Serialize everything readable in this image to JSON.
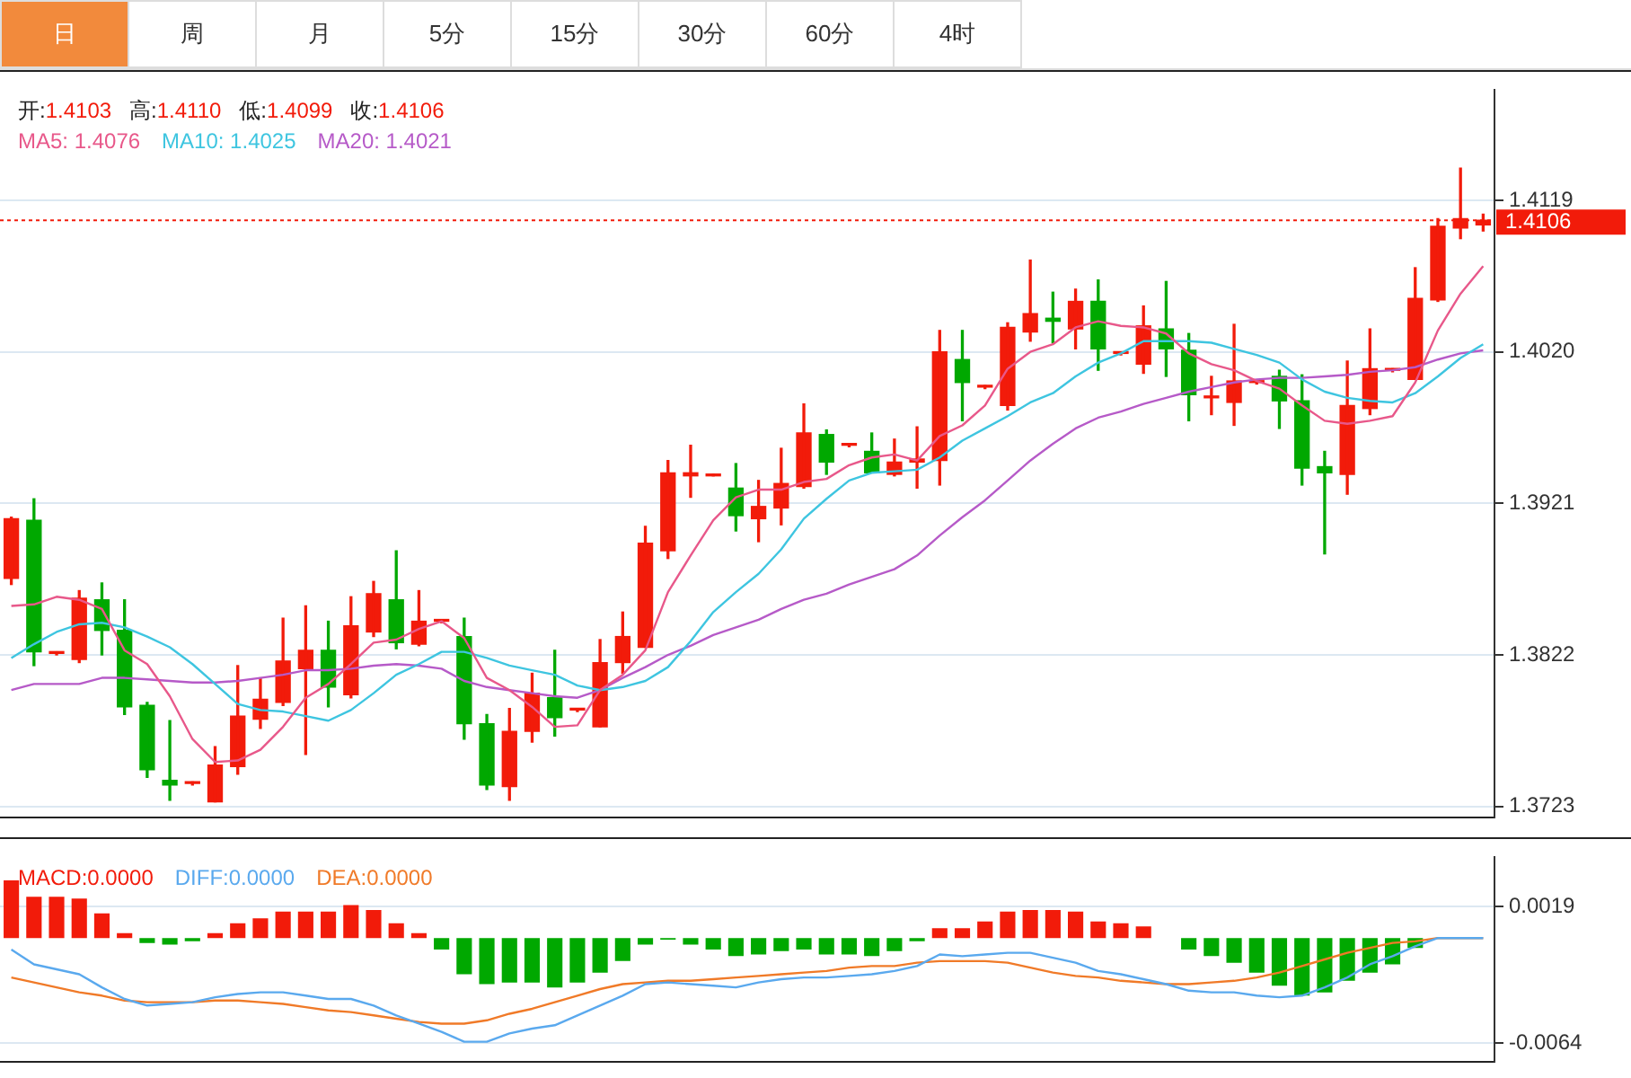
{
  "chart_data": [
    {
      "type": "other",
      "annotations": [
        "日",
        "周",
        "月",
        "5分",
        "15分",
        "30分",
        "60分",
        "4时"
      ]
    },
    {
      "type": "candlestick",
      "categories": [
        null,
        null,
        null,
        null,
        null,
        null,
        null,
        null,
        null,
        null,
        null,
        null,
        null,
        null,
        null,
        null,
        null,
        null,
        null,
        null,
        null,
        null,
        null,
        null,
        null,
        null,
        null,
        null,
        null,
        null,
        null,
        null,
        null,
        null,
        null,
        null,
        null,
        null,
        null,
        null,
        null,
        null,
        null,
        null,
        null,
        null,
        null,
        null,
        null,
        null,
        null,
        null,
        null,
        null,
        null,
        null,
        null,
        null,
        null,
        null,
        null,
        null,
        null,
        null,
        null,
        null
      ],
      "ohlc": [
        [
          1.3872,
          1.3912,
          1.3868,
          1.3911
        ],
        [
          1.391,
          1.3924,
          1.3815,
          1.3824
        ],
        [
          1.3823,
          1.3824,
          1.3822,
          1.3823
        ],
        [
          1.3819,
          1.3864,
          1.3817,
          1.3859
        ],
        [
          1.3858,
          1.3869,
          1.3822,
          1.3838
        ],
        [
          1.3838,
          1.3858,
          1.3783,
          1.3788
        ],
        [
          1.3789,
          1.3791,
          1.3742,
          1.3747
        ],
        [
          1.374,
          1.3779,
          1.3727,
          1.3737
        ],
        [
          1.3738,
          1.3739,
          1.3737,
          1.3738
        ],
        [
          1.3726,
          1.3762,
          1.3726,
          1.375
        ],
        [
          1.3749,
          1.3815,
          1.3744,
          1.3782
        ],
        [
          1.378,
          1.3807,
          1.3774,
          1.3793
        ],
        [
          1.3791,
          1.3846,
          1.3789,
          1.3818
        ],
        [
          1.3813,
          1.3854,
          1.3757,
          1.3825
        ],
        [
          1.3825,
          1.3844,
          1.3788,
          1.3801
        ],
        [
          1.3796,
          1.386,
          1.3794,
          1.3841
        ],
        [
          1.3837,
          1.387,
          1.3834,
          1.3862
        ],
        [
          1.3858,
          1.389,
          1.3826,
          1.383
        ],
        [
          1.3829,
          1.3864,
          1.3828,
          1.3844
        ],
        [
          1.3844,
          1.3845,
          1.3843,
          1.3844
        ],
        [
          1.3834,
          1.3846,
          1.3767,
          1.3777
        ],
        [
          1.3777,
          1.3783,
          1.3734,
          1.3737
        ],
        [
          1.3736,
          1.3787,
          1.3727,
          1.3772
        ],
        [
          1.3772,
          1.381,
          1.3765,
          1.3797
        ],
        [
          1.3794,
          1.3825,
          1.3769,
          1.3781
        ],
        [
          1.3786,
          1.3787,
          1.3785,
          1.3786
        ],
        [
          1.3775,
          1.3832,
          1.3775,
          1.3817
        ],
        [
          1.3817,
          1.385,
          1.381,
          1.3834
        ],
        [
          1.3827,
          1.3906,
          1.3827,
          1.3895
        ],
        [
          1.389,
          1.3949,
          1.3885,
          1.3941
        ],
        [
          1.3939,
          1.3959,
          1.3925,
          1.3941
        ],
        [
          1.3939,
          1.394,
          1.3939,
          1.394
        ],
        [
          1.3931,
          1.3947,
          1.3903,
          1.3913
        ],
        [
          1.3911,
          1.3936,
          1.3896,
          1.3919
        ],
        [
          1.3918,
          1.3957,
          1.3907,
          1.3934
        ],
        [
          1.3932,
          1.3986,
          1.3931,
          1.3967
        ],
        [
          1.3966,
          1.3969,
          1.394,
          1.3948
        ],
        [
          1.3959,
          1.396,
          1.3958,
          1.3959
        ],
        [
          1.3955,
          1.3967,
          1.3941,
          1.3941
        ],
        [
          1.394,
          1.3963,
          1.3939,
          1.3948
        ],
        [
          1.3948,
          1.3971,
          1.3931,
          1.395
        ],
        [
          1.3949,
          1.4034,
          1.3933,
          1.402
        ],
        [
          1.4015,
          1.4034,
          1.3975,
          1.4
        ],
        [
          1.3997,
          1.3998,
          1.3996,
          1.3997
        ],
        [
          1.3985,
          1.4039,
          1.3982,
          1.4036
        ],
        [
          1.4033,
          1.408,
          1.4027,
          1.4045
        ],
        [
          1.4042,
          1.4059,
          1.4026,
          1.404
        ],
        [
          1.4035,
          1.4061,
          1.4022,
          1.4053
        ],
        [
          1.4053,
          1.4067,
          1.4008,
          1.4022
        ],
        [
          1.4019,
          1.402,
          1.4018,
          1.4019
        ],
        [
          1.4012,
          1.405,
          1.4006,
          1.4037
        ],
        [
          1.4035,
          1.4066,
          1.4004,
          1.4022
        ],
        [
          1.4021,
          1.4032,
          1.3975,
          1.3992
        ],
        [
          1.399,
          1.4004,
          1.3979,
          1.3991
        ],
        [
          1.3987,
          1.4038,
          1.3972,
          1.4001
        ],
        [
          1.4,
          1.4001,
          1.3999,
          1.4
        ],
        [
          1.4004,
          1.4008,
          1.397,
          1.3988
        ],
        [
          1.3988,
          1.4005,
          1.3933,
          1.3944
        ],
        [
          1.3945,
          1.3955,
          1.3888,
          1.3941
        ],
        [
          1.394,
          1.4014,
          1.3927,
          1.3985
        ],
        [
          1.3983,
          1.4035,
          1.3979,
          1.4009
        ],
        [
          1.4008,
          1.4009,
          1.4007,
          1.4008
        ],
        [
          1.4002,
          1.4075,
          1.4002,
          1.4055
        ],
        [
          1.4054,
          1.4107,
          1.4053,
          1.4102
        ],
        [
          1.4101,
          1.414,
          1.4094,
          1.4107
        ],
        [
          1.4103,
          1.411,
          1.4099,
          1.4106
        ]
      ],
      "colors": [
        "#f21b0a",
        "#00a800",
        "#f21b0a",
        "#f21b0a",
        "#00a800",
        "#00a800",
        "#00a800",
        "#00a800",
        "#f21b0a",
        "#f21b0a",
        "#f21b0a",
        "#f21b0a",
        "#f21b0a",
        "#f21b0a",
        "#00a800",
        "#f21b0a",
        "#f21b0a",
        "#00a800",
        "#f21b0a",
        "#f21b0a",
        "#00a800",
        "#00a800",
        "#f21b0a",
        "#f21b0a",
        "#00a800",
        "#f21b0a",
        "#f21b0a",
        "#f21b0a",
        "#f21b0a",
        "#f21b0a",
        "#f21b0a",
        "#f21b0a",
        "#00a800",
        "#f21b0a",
        "#f21b0a",
        "#f21b0a",
        "#00a800",
        "#f21b0a",
        "#00a800",
        "#f21b0a",
        "#f21b0a",
        "#f21b0a",
        "#00a800",
        "#f21b0a",
        "#f21b0a",
        "#f21b0a",
        "#00a800",
        "#f21b0a",
        "#00a800",
        "#f21b0a",
        "#f21b0a",
        "#00a800",
        "#00a800",
        "#f21b0a",
        "#f21b0a",
        "#f21b0a",
        "#00a800",
        "#00a800",
        "#00a800",
        "#f21b0a",
        "#f21b0a",
        "#f21b0a",
        "#f21b0a",
        "#f21b0a",
        "#f21b0a",
        "#f21b0a"
      ],
      "series": [
        {
          "name": "MA5: 1.4076",
          "type": "line",
          "color": "#e8588a",
          "values": [
            1.3854,
            1.3855,
            1.386,
            1.3858,
            1.3852,
            1.3825,
            1.3816,
            1.3795,
            1.3767,
            1.3752,
            1.3753,
            1.376,
            1.3775,
            1.3794,
            1.3803,
            1.3816,
            1.383,
            1.3832,
            1.3839,
            1.3844,
            1.3833,
            1.3807,
            1.3799,
            1.3788,
            1.3775,
            1.3776,
            1.3799,
            1.3809,
            1.3825,
            1.3863,
            1.3887,
            1.391,
            1.3925,
            1.393,
            1.393,
            1.3935,
            1.3937,
            1.3946,
            1.3951,
            1.3953,
            1.3949,
            1.3965,
            1.3972,
            1.3985,
            1.4009,
            1.402,
            1.4025,
            1.4036,
            1.404,
            1.4037,
            1.4036,
            1.4032,
            1.4019,
            1.4012,
            1.4008,
            1.4001,
            1.3996,
            1.3985,
            1.3975,
            1.3973,
            1.3975,
            1.3978,
            1.4,
            1.4034,
            1.4058,
            1.4076
          ]
        },
        {
          "name": "MA10: 1.4025",
          "type": "line",
          "color": "#3ec5e0",
          "values": [
            1.382,
            1.3829,
            1.3837,
            1.3842,
            1.3843,
            1.384,
            1.3834,
            1.3827,
            1.3816,
            1.3803,
            1.379,
            1.3786,
            1.3785,
            1.3782,
            1.3779,
            1.3786,
            1.3797,
            1.3809,
            1.3816,
            1.3824,
            1.3824,
            1.382,
            1.3815,
            1.3812,
            1.3809,
            1.3802,
            1.3799,
            1.3801,
            1.3805,
            1.3814,
            1.3831,
            1.385,
            1.3863,
            1.3875,
            1.3891,
            1.3911,
            1.3924,
            1.3936,
            1.3941,
            1.3942,
            1.3943,
            1.3951,
            1.3962,
            1.397,
            1.3978,
            1.3987,
            1.3993,
            1.4004,
            1.4013,
            1.4019,
            1.4027,
            1.4027,
            1.4027,
            1.4026,
            1.4022,
            1.4018,
            1.4013,
            1.4002,
            1.3994,
            1.399,
            1.3988,
            1.3987,
            1.3993,
            1.4004,
            1.4016,
            1.4025
          ]
        },
        {
          "name": "MA20: 1.4021",
          "type": "line",
          "color": "#b65ac8",
          "values": [
            1.3799,
            1.3803,
            1.3803,
            1.3803,
            1.3807,
            1.3807,
            1.3806,
            1.3805,
            1.3804,
            1.3804,
            1.3805,
            1.3807,
            1.3809,
            1.3812,
            1.3812,
            1.3813,
            1.3815,
            1.3816,
            1.3815,
            1.3813,
            1.3805,
            1.3801,
            1.3799,
            1.3797,
            1.3795,
            1.3794,
            1.3799,
            1.3807,
            1.3814,
            1.3822,
            1.3828,
            1.3835,
            1.384,
            1.3845,
            1.3852,
            1.3858,
            1.3862,
            1.3868,
            1.3873,
            1.3878,
            1.3887,
            1.39,
            1.3912,
            1.3923,
            1.3936,
            1.3949,
            1.396,
            1.397,
            1.3977,
            1.3981,
            1.3986,
            1.399,
            1.3994,
            1.3997,
            1.4,
            1.4002,
            1.4003,
            1.4003,
            1.4004,
            1.4005,
            1.4007,
            1.4008,
            1.401,
            1.4015,
            1.4019,
            1.4021
          ]
        }
      ],
      "ylim": [
        1.3716,
        1.4191
      ],
      "yticks": [
        1.3723,
        1.3822,
        1.3921,
        {
          "value": 1.402,
          "label": "1.4020"
        },
        1.4119
      ],
      "grid": "y",
      "tick_labels": "y",
      "legend": "top left",
      "marker": "none",
      "line_style": "solid",
      "ref_lines": [
        {
          "axis": "y",
          "value": 1.4106,
          "label": "1.4106",
          "color": "#f21b0a",
          "line_style": "dotted"
        }
      ],
      "annotations": [
        "开:1.4103",
        "高:1.4110",
        "低:1.4099",
        "收:1.4106"
      ]
    },
    {
      "type": "bar",
      "categories": [
        null,
        null,
        null,
        null,
        null,
        null,
        null,
        null,
        null,
        null,
        null,
        null,
        null,
        null,
        null,
        null,
        null,
        null,
        null,
        null,
        null,
        null,
        null,
        null,
        null,
        null,
        null,
        null,
        null,
        null,
        null,
        null,
        null,
        null,
        null,
        null,
        null,
        null,
        null,
        null,
        null,
        null,
        null,
        null,
        null,
        null,
        null,
        null,
        null,
        null,
        null,
        null,
        null,
        null,
        null,
        null,
        null,
        null,
        null,
        null,
        null,
        null,
        null,
        null,
        null,
        null
      ],
      "series": [
        {
          "name": "MACD:0.0000",
          "type": "bar",
          "color": "#f21b0a",
          "values": [
            0.0035,
            0.0025,
            0.0025,
            0.0024,
            0.0015,
            0.0003,
            -0.0003,
            -0.0004,
            -0.0002,
            0.0003,
            0.0009,
            0.0012,
            0.0016,
            0.0016,
            0.0016,
            0.002,
            0.0017,
            0.0009,
            0.0003,
            -0.0007,
            -0.0022,
            -0.0028,
            -0.0027,
            -0.0027,
            -0.003,
            -0.0027,
            -0.0021,
            -0.0014,
            -0.0004,
            -0.0001,
            -0.0004,
            -0.0007,
            -0.0011,
            -0.001,
            -0.0008,
            -0.0007,
            -0.001,
            -0.001,
            -0.0011,
            -0.0008,
            -0.0002,
            0.0006,
            0.0006,
            0.001,
            0.0016,
            0.0017,
            0.0017,
            0.0016,
            0.001,
            0.0009,
            0.0007,
            0,
            -0.0007,
            -0.0011,
            -0.0015,
            -0.0021,
            -0.0029,
            -0.0035,
            -0.0033,
            -0.0026,
            -0.0021,
            -0.0016,
            -0.0006,
            0,
            0,
            0
          ],
          "colors": [
            "#f21b0a",
            "#f21b0a",
            "#f21b0a",
            "#f21b0a",
            "#f21b0a",
            "#f21b0a",
            "#00a800",
            "#00a800",
            "#00a800",
            "#f21b0a",
            "#f21b0a",
            "#f21b0a",
            "#f21b0a",
            "#f21b0a",
            "#f21b0a",
            "#f21b0a",
            "#f21b0a",
            "#f21b0a",
            "#f21b0a",
            "#00a800",
            "#00a800",
            "#00a800",
            "#00a800",
            "#00a800",
            "#00a800",
            "#00a800",
            "#00a800",
            "#00a800",
            "#00a800",
            "#00a800",
            "#00a800",
            "#00a800",
            "#00a800",
            "#00a800",
            "#00a800",
            "#00a800",
            "#00a800",
            "#00a800",
            "#00a800",
            "#00a800",
            "#00a800",
            "#f21b0a",
            "#f21b0a",
            "#f21b0a",
            "#f21b0a",
            "#f21b0a",
            "#f21b0a",
            "#f21b0a",
            "#f21b0a",
            "#f21b0a",
            "#f21b0a",
            "#00a800",
            "#00a800",
            "#00a800",
            "#00a800",
            "#00a800",
            "#00a800",
            "#00a800",
            "#00a800",
            "#00a800",
            "#00a800",
            "#00a800",
            "#00a800",
            "#00a800",
            "#00a800",
            "#00a800"
          ]
        },
        {
          "name": "DIFF:0.0000",
          "type": "line",
          "color": "#5aa9ee",
          "values": [
            -0.0007,
            -0.0016,
            -0.0019,
            -0.0022,
            -0.003,
            -0.0037,
            -0.0041,
            -0.004,
            -0.0039,
            -0.0036,
            -0.0034,
            -0.0033,
            -0.0033,
            -0.0035,
            -0.0037,
            -0.0037,
            -0.0041,
            -0.0047,
            -0.0052,
            -0.0057,
            -0.0063,
            -0.0063,
            -0.0058,
            -0.0055,
            -0.0053,
            -0.0047,
            -0.0041,
            -0.0035,
            -0.0028,
            -0.0027,
            -0.0028,
            -0.0029,
            -0.003,
            -0.0027,
            -0.0025,
            -0.0024,
            -0.0024,
            -0.0023,
            -0.0022,
            -0.002,
            -0.0017,
            -0.001,
            -0.0011,
            -0.001,
            -0.0009,
            -0.0009,
            -0.0012,
            -0.0015,
            -0.002,
            -0.0022,
            -0.0025,
            -0.0028,
            -0.0032,
            -0.0033,
            -0.0033,
            -0.0035,
            -0.0036,
            -0.0035,
            -0.003,
            -0.0024,
            -0.0016,
            -0.0011,
            -0.0005,
            0,
            0,
            0
          ]
        },
        {
          "name": "DEA:0.0000",
          "type": "line",
          "color": "#f07a28",
          "values": [
            -0.0024,
            -0.0027,
            -0.003,
            -0.0033,
            -0.0035,
            -0.0038,
            -0.0039,
            -0.0039,
            -0.0039,
            -0.0038,
            -0.0038,
            -0.0039,
            -0.004,
            -0.0042,
            -0.0044,
            -0.0045,
            -0.0047,
            -0.0049,
            -0.0051,
            -0.0052,
            -0.0052,
            -0.005,
            -0.0046,
            -0.0043,
            -0.0039,
            -0.0035,
            -0.0031,
            -0.0028,
            -0.0027,
            -0.0026,
            -0.0026,
            -0.0025,
            -0.0024,
            -0.0023,
            -0.0022,
            -0.0021,
            -0.002,
            -0.0018,
            -0.0017,
            -0.0017,
            -0.0015,
            -0.0014,
            -0.0014,
            -0.0014,
            -0.0015,
            -0.0018,
            -0.0021,
            -0.0023,
            -0.0024,
            -0.0026,
            -0.0027,
            -0.0028,
            -0.0028,
            -0.0027,
            -0.0026,
            -0.0024,
            -0.0021,
            -0.0017,
            -0.0013,
            -0.0009,
            -0.0006,
            -0.0003,
            -0.0002,
            0,
            0,
            0
          ]
        }
      ],
      "ylim": [
        -0.0075,
        0.0049
      ],
      "yticks": [
        -0.0064,
        0.0019
      ],
      "grid": "y",
      "tick_labels": "y",
      "legend": "top left",
      "marker": "none",
      "line_style": "solid"
    }
  ]
}
